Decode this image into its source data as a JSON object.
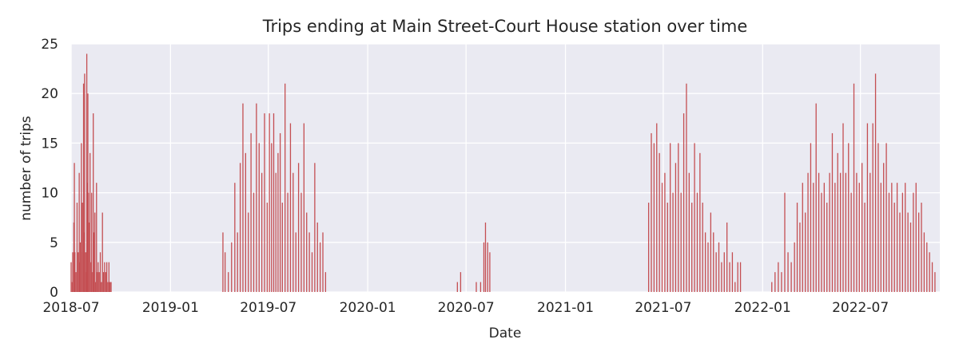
{
  "chart_data": {
    "type": "bar",
    "title": "Trips ending at Main Street-Court House station over time",
    "xlabel": "Date",
    "ylabel": "number of trips",
    "xlim": [
      "2018-07-01",
      "2022-11-25"
    ],
    "ylim": [
      0,
      25
    ],
    "y_ticks": [
      0,
      5,
      10,
      15,
      20,
      25
    ],
    "x_ticks": [
      {
        "date": "2018-07-01",
        "label": "2018-07"
      },
      {
        "date": "2019-01-01",
        "label": "2019-01"
      },
      {
        "date": "2019-07-01",
        "label": "2019-07"
      },
      {
        "date": "2020-01-01",
        "label": "2020-01"
      },
      {
        "date": "2020-07-01",
        "label": "2020-07"
      },
      {
        "date": "2021-01-01",
        "label": "2021-01"
      },
      {
        "date": "2021-07-01",
        "label": "2021-07"
      },
      {
        "date": "2022-01-01",
        "label": "2022-01"
      },
      {
        "date": "2022-07-01",
        "label": "2022-07"
      }
    ],
    "grid": true,
    "colors": {
      "bar": "#c44e52",
      "background": "#eaeaf2",
      "grid": "#ffffff"
    },
    "series": [
      {
        "values": [
          [
            "2018-07-01",
            3
          ],
          [
            "2018-07-03",
            1
          ],
          [
            "2018-07-04",
            4
          ],
          [
            "2018-07-06",
            7
          ],
          [
            "2018-07-07",
            13
          ],
          [
            "2018-07-08",
            4
          ],
          [
            "2018-07-10",
            2
          ],
          [
            "2018-07-12",
            9
          ],
          [
            "2018-07-14",
            4
          ],
          [
            "2018-07-16",
            12
          ],
          [
            "2018-07-17",
            3
          ],
          [
            "2018-07-18",
            5
          ],
          [
            "2018-07-20",
            15
          ],
          [
            "2018-07-21",
            4
          ],
          [
            "2018-07-22",
            9
          ],
          [
            "2018-07-24",
            21
          ],
          [
            "2018-07-25",
            6
          ],
          [
            "2018-07-26",
            22
          ],
          [
            "2018-07-28",
            4
          ],
          [
            "2018-07-29",
            2
          ],
          [
            "2018-07-30",
            24
          ],
          [
            "2018-07-31",
            11
          ],
          [
            "2018-08-01",
            20
          ],
          [
            "2018-08-02",
            10
          ],
          [
            "2018-08-04",
            7
          ],
          [
            "2018-08-05",
            14
          ],
          [
            "2018-08-07",
            3
          ],
          [
            "2018-08-08",
            10
          ],
          [
            "2018-08-10",
            2
          ],
          [
            "2018-08-11",
            18
          ],
          [
            "2018-08-12",
            6
          ],
          [
            "2018-08-14",
            8
          ],
          [
            "2018-08-15",
            1
          ],
          [
            "2018-08-17",
            11
          ],
          [
            "2018-08-18",
            2
          ],
          [
            "2018-08-20",
            3
          ],
          [
            "2018-08-22",
            2
          ],
          [
            "2018-08-24",
            4
          ],
          [
            "2018-08-26",
            1
          ],
          [
            "2018-08-28",
            8
          ],
          [
            "2018-08-30",
            2
          ],
          [
            "2018-09-01",
            3
          ],
          [
            "2018-09-03",
            2
          ],
          [
            "2018-09-05",
            3
          ],
          [
            "2018-09-07",
            1
          ],
          [
            "2018-09-09",
            3
          ],
          [
            "2018-09-11",
            1
          ],
          [
            "2018-09-13",
            1
          ],
          [
            "2019-04-08",
            6
          ],
          [
            "2019-04-12",
            4
          ],
          [
            "2019-04-18",
            2
          ],
          [
            "2019-04-24",
            5
          ],
          [
            "2019-04-30",
            11
          ],
          [
            "2019-05-05",
            6
          ],
          [
            "2019-05-10",
            13
          ],
          [
            "2019-05-15",
            19
          ],
          [
            "2019-05-20",
            14
          ],
          [
            "2019-05-25",
            8
          ],
          [
            "2019-05-30",
            16
          ],
          [
            "2019-06-04",
            10
          ],
          [
            "2019-06-09",
            19
          ],
          [
            "2019-06-14",
            15
          ],
          [
            "2019-06-19",
            12
          ],
          [
            "2019-06-24",
            18
          ],
          [
            "2019-06-29",
            9
          ],
          [
            "2019-07-03",
            18
          ],
          [
            "2019-07-07",
            15
          ],
          [
            "2019-07-11",
            18
          ],
          [
            "2019-07-15",
            12
          ],
          [
            "2019-07-19",
            14
          ],
          [
            "2019-07-23",
            16
          ],
          [
            "2019-07-27",
            9
          ],
          [
            "2019-08-01",
            21
          ],
          [
            "2019-08-06",
            10
          ],
          [
            "2019-08-11",
            17
          ],
          [
            "2019-08-16",
            12
          ],
          [
            "2019-08-21",
            6
          ],
          [
            "2019-08-26",
            13
          ],
          [
            "2019-08-31",
            10
          ],
          [
            "2019-09-05",
            17
          ],
          [
            "2019-09-10",
            8
          ],
          [
            "2019-09-15",
            6
          ],
          [
            "2019-09-20",
            4
          ],
          [
            "2019-09-25",
            13
          ],
          [
            "2019-09-30",
            7
          ],
          [
            "2019-10-05",
            5
          ],
          [
            "2019-10-10",
            6
          ],
          [
            "2019-10-15",
            2
          ],
          [
            "2020-06-15",
            1
          ],
          [
            "2020-06-21",
            2
          ],
          [
            "2020-07-20",
            1
          ],
          [
            "2020-07-28",
            1
          ],
          [
            "2020-08-03",
            5
          ],
          [
            "2020-08-06",
            7
          ],
          [
            "2020-08-10",
            5
          ],
          [
            "2020-08-14",
            4
          ],
          [
            "2021-06-04",
            9
          ],
          [
            "2021-06-09",
            16
          ],
          [
            "2021-06-14",
            15
          ],
          [
            "2021-06-19",
            17
          ],
          [
            "2021-06-24",
            14
          ],
          [
            "2021-06-29",
            11
          ],
          [
            "2021-07-04",
            12
          ],
          [
            "2021-07-09",
            9
          ],
          [
            "2021-07-14",
            15
          ],
          [
            "2021-07-19",
            10
          ],
          [
            "2021-07-24",
            13
          ],
          [
            "2021-07-29",
            15
          ],
          [
            "2021-08-03",
            10
          ],
          [
            "2021-08-08",
            18
          ],
          [
            "2021-08-13",
            21
          ],
          [
            "2021-08-18",
            12
          ],
          [
            "2021-08-23",
            9
          ],
          [
            "2021-08-28",
            15
          ],
          [
            "2021-09-02",
            10
          ],
          [
            "2021-09-07",
            14
          ],
          [
            "2021-09-12",
            9
          ],
          [
            "2021-09-17",
            6
          ],
          [
            "2021-09-22",
            5
          ],
          [
            "2021-09-27",
            8
          ],
          [
            "2021-10-02",
            6
          ],
          [
            "2021-10-07",
            4
          ],
          [
            "2021-10-12",
            5
          ],
          [
            "2021-10-17",
            3
          ],
          [
            "2021-10-22",
            4
          ],
          [
            "2021-10-27",
            7
          ],
          [
            "2021-11-01",
            3
          ],
          [
            "2021-11-06",
            4
          ],
          [
            "2021-11-11",
            1
          ],
          [
            "2021-11-16",
            3
          ],
          [
            "2021-11-21",
            3
          ],
          [
            "2022-01-18",
            1
          ],
          [
            "2022-01-24",
            2
          ],
          [
            "2022-01-30",
            3
          ],
          [
            "2022-02-05",
            2
          ],
          [
            "2022-02-11",
            10
          ],
          [
            "2022-02-17",
            4
          ],
          [
            "2022-02-23",
            3
          ],
          [
            "2022-03-01",
            5
          ],
          [
            "2022-03-06",
            9
          ],
          [
            "2022-03-11",
            7
          ],
          [
            "2022-03-16",
            11
          ],
          [
            "2022-03-21",
            8
          ],
          [
            "2022-03-26",
            12
          ],
          [
            "2022-03-31",
            15
          ],
          [
            "2022-04-05",
            11
          ],
          [
            "2022-04-10",
            19
          ],
          [
            "2022-04-15",
            12
          ],
          [
            "2022-04-20",
            10
          ],
          [
            "2022-04-25",
            11
          ],
          [
            "2022-04-30",
            9
          ],
          [
            "2022-05-05",
            12
          ],
          [
            "2022-05-10",
            16
          ],
          [
            "2022-05-15",
            11
          ],
          [
            "2022-05-20",
            14
          ],
          [
            "2022-05-25",
            12
          ],
          [
            "2022-05-30",
            17
          ],
          [
            "2022-06-04",
            12
          ],
          [
            "2022-06-09",
            15
          ],
          [
            "2022-06-14",
            10
          ],
          [
            "2022-06-19",
            21
          ],
          [
            "2022-06-24",
            12
          ],
          [
            "2022-06-29",
            11
          ],
          [
            "2022-07-04",
            13
          ],
          [
            "2022-07-09",
            9
          ],
          [
            "2022-07-14",
            17
          ],
          [
            "2022-07-19",
            12
          ],
          [
            "2022-07-24",
            17
          ],
          [
            "2022-07-29",
            22
          ],
          [
            "2022-08-03",
            15
          ],
          [
            "2022-08-08",
            11
          ],
          [
            "2022-08-13",
            13
          ],
          [
            "2022-08-18",
            15
          ],
          [
            "2022-08-23",
            10
          ],
          [
            "2022-08-28",
            11
          ],
          [
            "2022-09-02",
            9
          ],
          [
            "2022-09-07",
            11
          ],
          [
            "2022-09-12",
            8
          ],
          [
            "2022-09-17",
            10
          ],
          [
            "2022-09-22",
            11
          ],
          [
            "2022-09-27",
            8
          ],
          [
            "2022-10-02",
            7
          ],
          [
            "2022-10-07",
            10
          ],
          [
            "2022-10-12",
            11
          ],
          [
            "2022-10-17",
            8
          ],
          [
            "2022-10-22",
            9
          ],
          [
            "2022-10-27",
            6
          ],
          [
            "2022-11-01",
            5
          ],
          [
            "2022-11-06",
            4
          ],
          [
            "2022-11-11",
            3
          ],
          [
            "2022-11-16",
            2
          ]
        ]
      }
    ]
  }
}
